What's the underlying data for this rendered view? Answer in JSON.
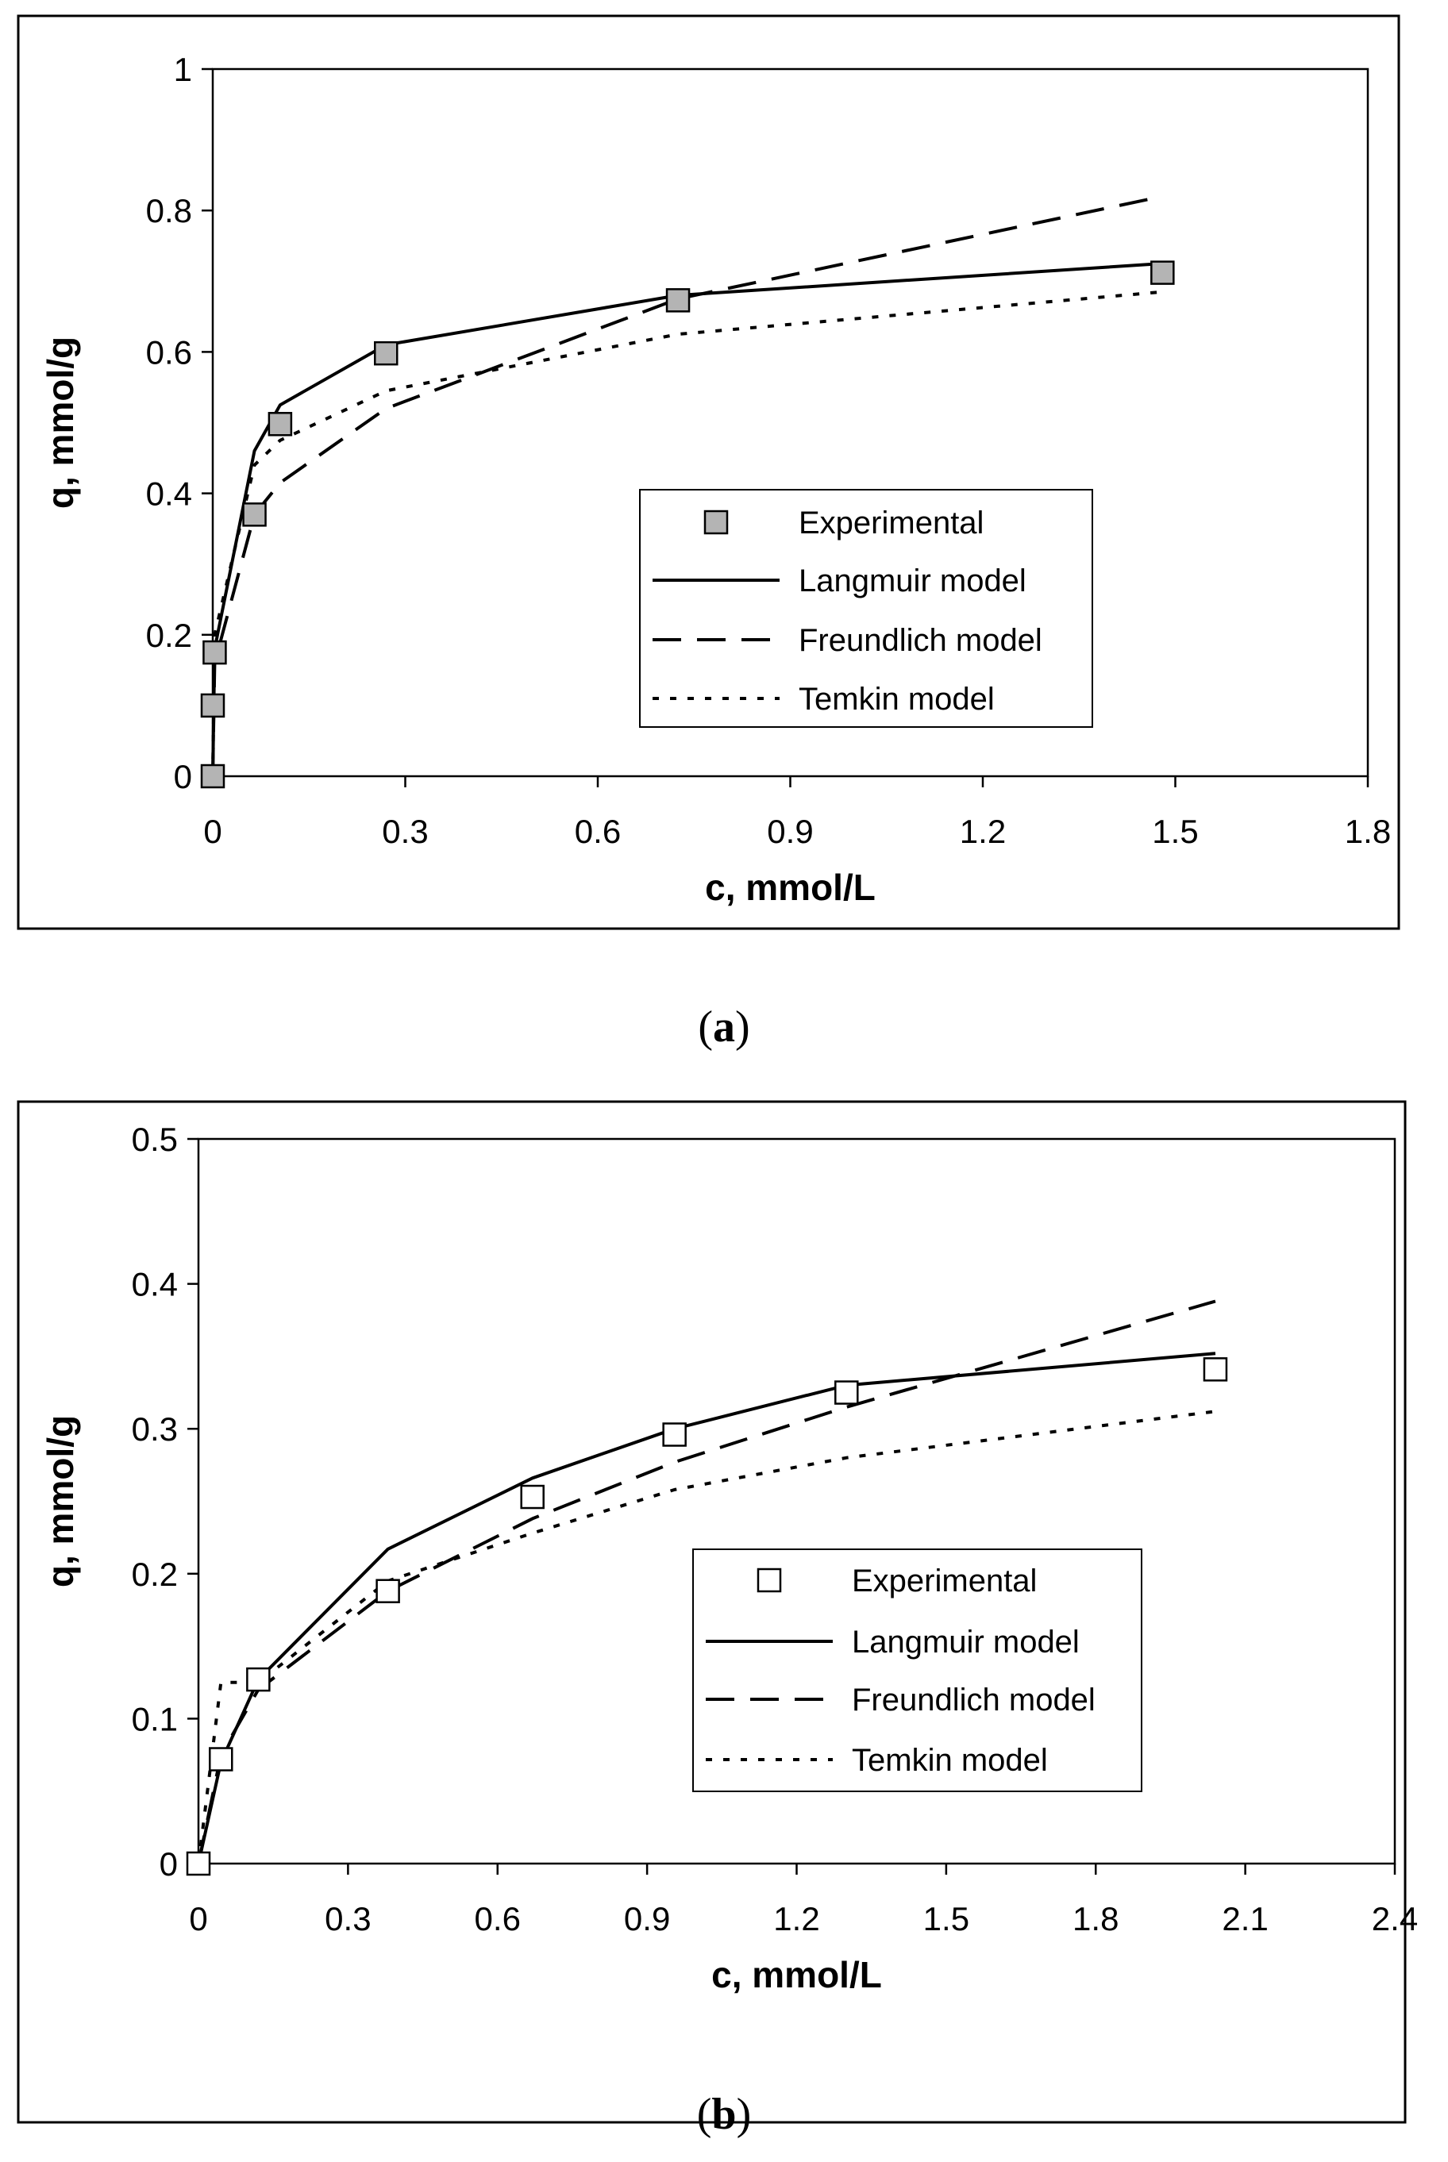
{
  "chart_data": [
    {
      "type": "line",
      "panel": "a",
      "caption_letter": "a",
      "xlabel": "c, mmol/L",
      "ylabel": "q, mmol/g",
      "xlim": [
        0,
        1.8
      ],
      "ylim": [
        0,
        1
      ],
      "x_ticks": [
        0,
        0.3,
        0.6,
        0.9,
        1.2,
        1.5,
        1.8
      ],
      "x_tick_labels": [
        "0",
        "0.3",
        "0.6",
        "0.9",
        "1.2",
        "1.5",
        "1.8"
      ],
      "y_ticks": [
        0,
        0.2,
        0.4,
        0.6,
        0.8,
        1
      ],
      "y_tick_labels": [
        "0",
        "0.2",
        "0.4",
        "0.6",
        "0.8",
        "1"
      ],
      "marker_fill": "#b4b4b4",
      "legend": [
        "Experimental",
        "Langmuir model",
        "Freundlich model",
        "Temkin model"
      ],
      "series": [
        {
          "name": "Experimental",
          "style": "marker",
          "x": [
            0,
            0,
            0.003,
            0.065,
            0.105,
            0.27,
            0.725,
            1.48
          ],
          "y": [
            0,
            0.1,
            0.175,
            0.37,
            0.498,
            0.598,
            0.673,
            0.712
          ]
        },
        {
          "name": "Langmuir model",
          "style": "solid",
          "x": [
            0,
            0.003,
            0.065,
            0.105,
            0.27,
            0.725,
            1.48
          ],
          "y": [
            0,
            0.18,
            0.46,
            0.525,
            0.61,
            0.68,
            0.725
          ]
        },
        {
          "name": "Freundlich model",
          "style": "dashed",
          "x": [
            0,
            0.003,
            0.065,
            0.105,
            0.27,
            0.725,
            1.48
          ],
          "y": [
            0,
            0.16,
            0.37,
            0.415,
            0.52,
            0.675,
            0.82
          ]
        },
        {
          "name": "Temkin model",
          "style": "dotted",
          "x": [
            0,
            0.003,
            0.065,
            0.105,
            0.27,
            0.725,
            1.48
          ],
          "y": [
            0,
            0.2,
            0.44,
            0.475,
            0.545,
            0.625,
            0.685
          ]
        }
      ]
    },
    {
      "type": "line",
      "panel": "b",
      "caption_letter": "b",
      "xlabel": "c, mmol/L",
      "ylabel": "q, mmol/g",
      "xlim": [
        0,
        2.4
      ],
      "ylim": [
        0,
        0.5
      ],
      "x_ticks": [
        0,
        0.3,
        0.6,
        0.9,
        1.2,
        1.5,
        1.8,
        2.1,
        2.4
      ],
      "x_tick_labels": [
        "0",
        "0.3",
        "0.6",
        "0.9",
        "1.2",
        "1.5",
        "1.8",
        "2.1",
        "2.4"
      ],
      "y_ticks": [
        0,
        0.1,
        0.2,
        0.3,
        0.4,
        0.5
      ],
      "y_tick_labels": [
        "0",
        "0.1",
        "0.2",
        "0.3",
        "0.4",
        "0.5"
      ],
      "marker_fill": "#ffffff",
      "legend": [
        "Experimental",
        "Langmuir model",
        "Freundlich model",
        "Temkin model"
      ],
      "series": [
        {
          "name": "Experimental",
          "style": "marker",
          "x": [
            0,
            0.045,
            0.12,
            0.38,
            0.67,
            0.955,
            1.3,
            2.04
          ],
          "y": [
            0,
            0.072,
            0.127,
            0.188,
            0.253,
            0.296,
            0.325,
            0.341
          ]
        },
        {
          "name": "Langmuir model",
          "style": "solid",
          "x": [
            0,
            0.045,
            0.12,
            0.38,
            0.67,
            0.955,
            1.3,
            2.04
          ],
          "y": [
            0,
            0.07,
            0.127,
            0.217,
            0.266,
            0.3,
            0.33,
            0.352
          ]
        },
        {
          "name": "Freundlich model",
          "style": "dashed",
          "x": [
            0,
            0.045,
            0.12,
            0.38,
            0.67,
            0.955,
            1.3,
            2.04
          ],
          "y": [
            0,
            0.075,
            0.12,
            0.188,
            0.238,
            0.277,
            0.315,
            0.388
          ]
        },
        {
          "name": "Temkin model",
          "style": "dotted",
          "x": [
            0,
            0.045,
            0.12,
            0.38,
            0.67,
            0.955,
            1.3,
            2.04
          ],
          "y": [
            0,
            0.125,
            0.125,
            0.195,
            0.228,
            0.258,
            0.28,
            0.312
          ]
        }
      ]
    }
  ]
}
